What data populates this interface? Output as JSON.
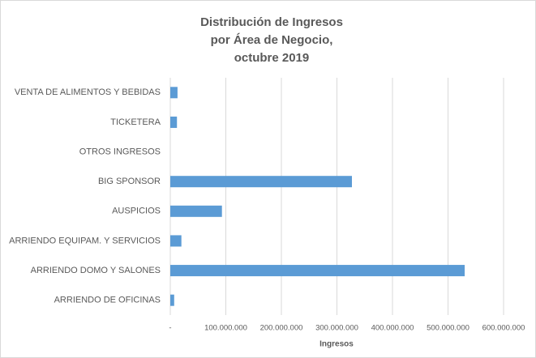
{
  "chart_data": {
    "type": "barh",
    "title": [
      "Distribución de Ingresos",
      "por Área de Negocio,",
      "octubre 2019"
    ],
    "x_label": "Ingresos",
    "categories": [
      "VENTA DE ALIMENTOS Y BEBIDAS",
      "TICKETERA",
      "OTROS INGRESOS",
      "BIG SPONSOR",
      "AUSPICIOS",
      "ARRIENDO EQUIPAM. Y SERVICIOS",
      "ARRIENDO DOMO Y SALONES",
      "ARRIENDO DE OFICINAS"
    ],
    "values": [
      13000000,
      12000000,
      0,
      327000000,
      93000000,
      20000000,
      530000000,
      7000000
    ],
    "color": "#5b9bd5",
    "xlim": [
      0,
      600000000
    ],
    "xticks": [
      {
        "value": 0,
        "label": "-"
      },
      {
        "value": 100000000,
        "label": "100.000.000"
      },
      {
        "value": 200000000,
        "label": "200.000.000"
      },
      {
        "value": 300000000,
        "label": "300.000.000"
      },
      {
        "value": 400000000,
        "label": "400.000.000"
      },
      {
        "value": 500000000,
        "label": "500.000.000"
      },
      {
        "value": 600000000,
        "label": "600.000.000"
      }
    ],
    "grid": true
  }
}
